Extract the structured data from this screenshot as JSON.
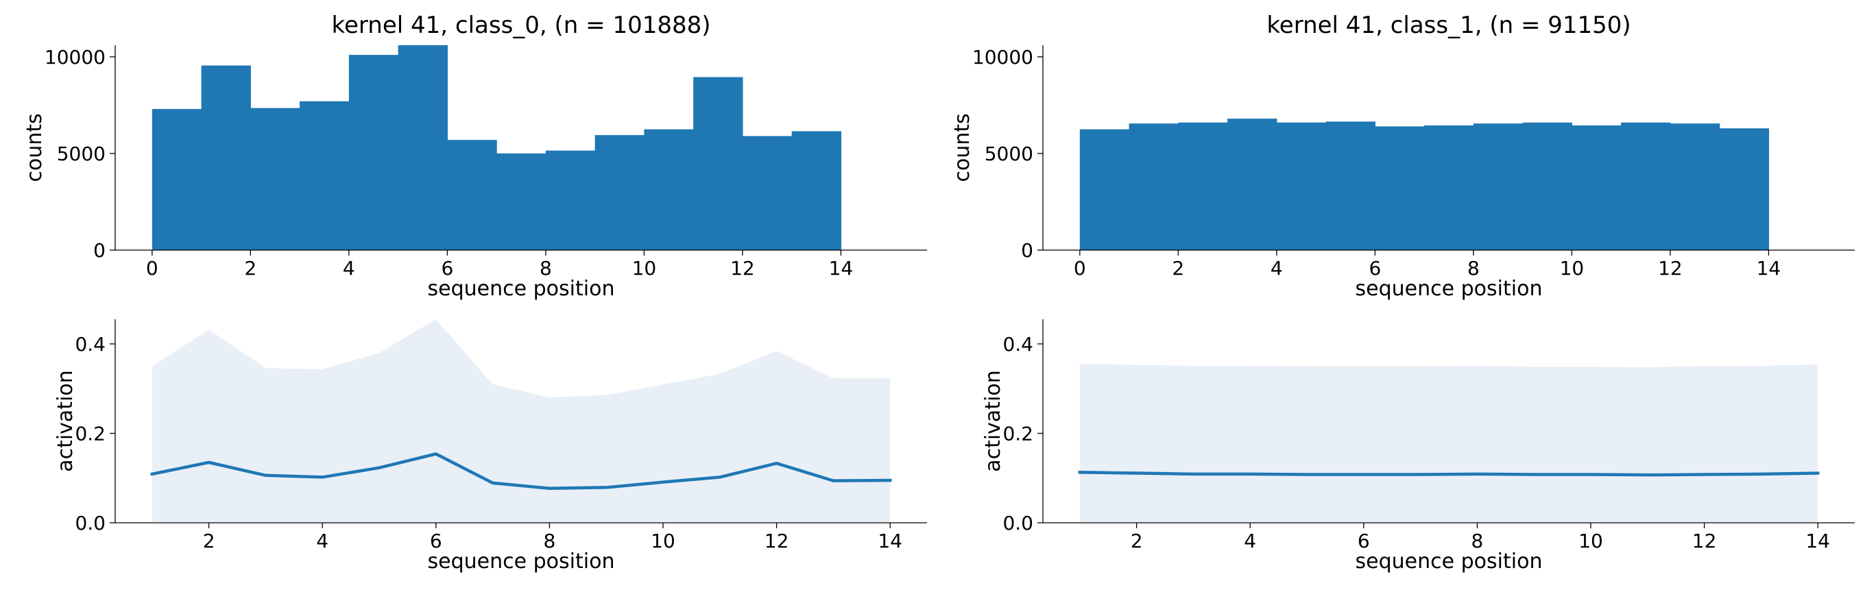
{
  "colors": {
    "bar": "#1f77b4",
    "line": "#1f77b4",
    "band": "#e8eff7"
  },
  "chart_data": [
    {
      "type": "bar",
      "title": "kernel 41, class_0, (n = 101888)",
      "xlabel": "sequence position",
      "ylabel": "counts",
      "xlim": [
        -0.75,
        15.75
      ],
      "ylim": [
        0,
        10600
      ],
      "xticks": [
        0,
        2,
        4,
        6,
        8,
        10,
        12,
        14
      ],
      "xtick_labels": [
        "0",
        "2",
        "4",
        "6",
        "8",
        "10",
        "12",
        "14"
      ],
      "yticks": [
        0,
        5000,
        10000
      ],
      "ytick_labels": [
        "0",
        "5000",
        "10000"
      ],
      "bin_edges": [
        0,
        1,
        2,
        3,
        4,
        5,
        6,
        7,
        8,
        9,
        10,
        11,
        12,
        13,
        14
      ],
      "values": [
        7300,
        9550,
        7350,
        7700,
        10100,
        10600,
        5700,
        5000,
        5150,
        5950,
        6250,
        8950,
        5900,
        6150
      ]
    },
    {
      "type": "bar",
      "title": "kernel 41, class_1, (n = 91150)",
      "xlabel": "sequence position",
      "ylabel": "counts",
      "xlim": [
        -0.75,
        15.75
      ],
      "ylim": [
        0,
        10600
      ],
      "xticks": [
        0,
        2,
        4,
        6,
        8,
        10,
        12,
        14
      ],
      "xtick_labels": [
        "0",
        "2",
        "4",
        "6",
        "8",
        "10",
        "12",
        "14"
      ],
      "yticks": [
        0,
        5000,
        10000
      ],
      "ytick_labels": [
        "0",
        "5000",
        "10000"
      ],
      "bin_edges": [
        0,
        1,
        2,
        3,
        4,
        5,
        6,
        7,
        8,
        9,
        10,
        11,
        12,
        13,
        14
      ],
      "values": [
        6250,
        6550,
        6600,
        6800,
        6600,
        6650,
        6400,
        6450,
        6550,
        6600,
        6450,
        6600,
        6550,
        6300
      ]
    },
    {
      "type": "area",
      "title": "",
      "xlabel": "sequence position",
      "ylabel": "activation",
      "xlim": [
        0.35,
        14.65
      ],
      "ylim": [
        0,
        0.455
      ],
      "xticks": [
        2,
        4,
        6,
        8,
        10,
        12,
        14
      ],
      "xtick_labels": [
        "2",
        "4",
        "6",
        "8",
        "10",
        "12",
        "14"
      ],
      "yticks": [
        0,
        0.2,
        0.4
      ],
      "ytick_labels": [
        "0.0",
        "0.2",
        "0.4"
      ],
      "x": [
        1,
        2,
        3,
        4,
        5,
        6,
        7,
        8,
        9,
        10,
        11,
        12,
        13,
        14
      ],
      "mean": [
        0.109,
        0.135,
        0.106,
        0.102,
        0.123,
        0.154,
        0.089,
        0.077,
        0.079,
        0.091,
        0.102,
        0.133,
        0.094,
        0.095
      ],
      "band_upper": [
        0.35,
        0.432,
        0.346,
        0.343,
        0.38,
        0.455,
        0.31,
        0.28,
        0.286,
        0.309,
        0.333,
        0.384,
        0.323,
        0.323
      ],
      "band_lower": [
        0,
        0,
        0,
        0,
        0,
        0,
        0,
        0,
        0,
        0,
        0,
        0,
        0,
        0
      ]
    },
    {
      "type": "area",
      "title": "",
      "xlabel": "sequence position",
      "ylabel": "activation",
      "xlim": [
        0.35,
        14.65
      ],
      "ylim": [
        0,
        0.455
      ],
      "xticks": [
        2,
        4,
        6,
        8,
        10,
        12,
        14
      ],
      "xtick_labels": [
        "2",
        "4",
        "6",
        "8",
        "10",
        "12",
        "14"
      ],
      "yticks": [
        0,
        0.2,
        0.4
      ],
      "ytick_labels": [
        "0.0",
        "0.2",
        "0.4"
      ],
      "x": [
        1,
        2,
        3,
        4,
        5,
        6,
        7,
        8,
        9,
        10,
        11,
        12,
        13,
        14
      ],
      "mean": [
        0.113,
        0.111,
        0.109,
        0.109,
        0.108,
        0.108,
        0.108,
        0.109,
        0.108,
        0.108,
        0.107,
        0.108,
        0.109,
        0.111
      ],
      "band_upper": [
        0.356,
        0.353,
        0.351,
        0.351,
        0.35,
        0.35,
        0.35,
        0.351,
        0.349,
        0.349,
        0.348,
        0.35,
        0.351,
        0.354
      ],
      "band_lower": [
        0,
        0,
        0,
        0,
        0,
        0,
        0,
        0,
        0,
        0,
        0,
        0,
        0,
        0
      ]
    }
  ]
}
